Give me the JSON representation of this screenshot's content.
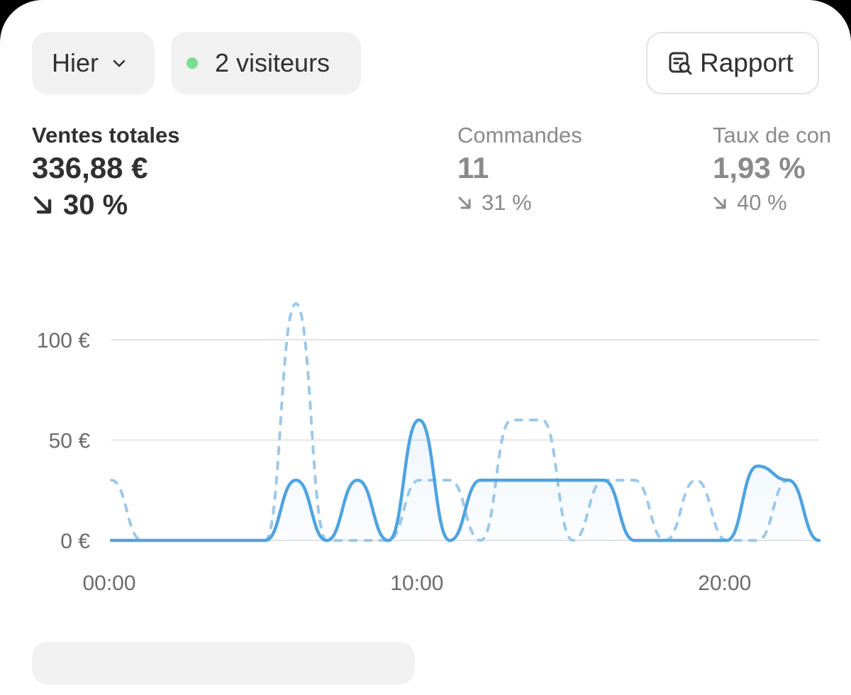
{
  "filters": {
    "date_label": "Hier",
    "visitors_label": "2 visiteurs",
    "report_label": "Rapport"
  },
  "metrics": [
    {
      "label": "Ventes totales",
      "value": "336,88 €",
      "delta": "30 %"
    },
    {
      "label": "Commandes",
      "value": "11",
      "delta": "31 %"
    },
    {
      "label": "Taux de con",
      "value": "1,93 %",
      "delta": "40 %"
    }
  ],
  "colors": {
    "accent": "#4fa3e0",
    "comparison": "#9cc8ea",
    "live_dot": "#77de90"
  },
  "chart_data": {
    "type": "line",
    "x_unit": "hour",
    "x_ticks": [
      "00:00",
      "10:00",
      "20:00"
    ],
    "x_tick_values": [
      0,
      10,
      20
    ],
    "xlim": [
      0,
      23
    ],
    "y_ticks": [
      "0 €",
      "50 €",
      "100 €"
    ],
    "y_tick_values": [
      0,
      50,
      100
    ],
    "ylim": [
      0,
      100
    ],
    "grid": true,
    "series": [
      {
        "style": "solid",
        "x": [
          0,
          1,
          2,
          3,
          4,
          5,
          6,
          7,
          8,
          9,
          10,
          11,
          12,
          13,
          14,
          15,
          16,
          17,
          18,
          19,
          20,
          21,
          22,
          23
        ],
        "values": [
          0,
          0,
          0,
          0,
          0,
          0,
          30,
          0,
          30,
          0,
          60,
          0,
          30,
          30,
          30,
          30,
          30,
          0,
          0,
          0,
          0,
          37,
          30,
          0
        ]
      },
      {
        "style": "dashed",
        "x": [
          0,
          1,
          2,
          3,
          4,
          5,
          6,
          7,
          8,
          9,
          10,
          11,
          12,
          13,
          14,
          15,
          16,
          17,
          18,
          19,
          20,
          21,
          22,
          23
        ],
        "values": [
          30,
          0,
          0,
          0,
          0,
          0,
          118,
          0,
          0,
          0,
          30,
          30,
          0,
          60,
          60,
          0,
          30,
          30,
          0,
          30,
          0,
          0,
          30,
          0
        ]
      }
    ]
  }
}
